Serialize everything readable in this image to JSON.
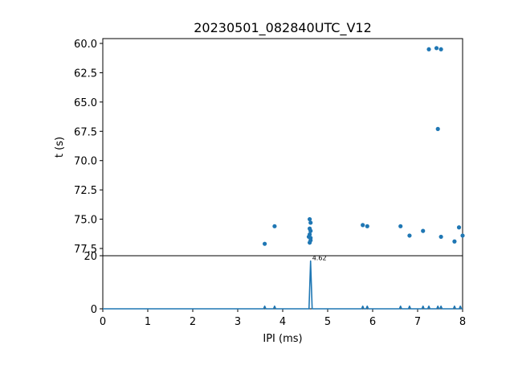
{
  "chart_data": [
    {
      "type": "scatter",
      "title": "20230501_082840UTC_V12",
      "xlabel": "",
      "ylabel": "t (s)",
      "xlim": [
        0,
        8
      ],
      "ylim": [
        77.5,
        60.0
      ],
      "y_inverted": true,
      "yticks": [
        "60.0",
        "62.5",
        "65.0",
        "67.5",
        "70.0",
        "72.5",
        "75.0",
        "77.5"
      ],
      "color": "#1f77b4",
      "points": [
        {
          "x": 3.6,
          "y": 77.1
        },
        {
          "x": 3.82,
          "y": 75.6
        },
        {
          "x": 4.6,
          "y": 75.0
        },
        {
          "x": 4.62,
          "y": 75.3
        },
        {
          "x": 4.6,
          "y": 75.8
        },
        {
          "x": 4.62,
          "y": 76.0
        },
        {
          "x": 4.6,
          "y": 76.3
        },
        {
          "x": 4.62,
          "y": 76.6
        },
        {
          "x": 4.58,
          "y": 76.5
        },
        {
          "x": 4.62,
          "y": 76.8
        },
        {
          "x": 4.6,
          "y": 77.0
        },
        {
          "x": 5.78,
          "y": 75.5
        },
        {
          "x": 5.88,
          "y": 75.6
        },
        {
          "x": 6.62,
          "y": 75.6
        },
        {
          "x": 6.82,
          "y": 76.4
        },
        {
          "x": 7.12,
          "y": 76.0
        },
        {
          "x": 7.25,
          "y": 60.5
        },
        {
          "x": 7.42,
          "y": 60.4
        },
        {
          "x": 7.52,
          "y": 60.5
        },
        {
          "x": 7.45,
          "y": 67.3
        },
        {
          "x": 7.52,
          "y": 76.5
        },
        {
          "x": 7.82,
          "y": 76.9
        },
        {
          "x": 7.92,
          "y": 75.7
        },
        {
          "x": 8.0,
          "y": 76.4
        }
      ]
    },
    {
      "type": "line",
      "xlabel": "IPI (ms)",
      "ylabel": "",
      "xlim": [
        0,
        8
      ],
      "ylim": [
        0,
        20
      ],
      "xticks": [
        "0",
        "1",
        "2",
        "3",
        "4",
        "5",
        "6",
        "7",
        "8"
      ],
      "yticks": [
        "0",
        "20"
      ],
      "color": "#1f77b4",
      "peaks": [
        {
          "x": 3.6,
          "y": 1
        },
        {
          "x": 3.82,
          "y": 1
        },
        {
          "x": 4.62,
          "y": 18
        },
        {
          "x": 5.78,
          "y": 1
        },
        {
          "x": 5.88,
          "y": 1
        },
        {
          "x": 6.62,
          "y": 1
        },
        {
          "x": 6.82,
          "y": 1
        },
        {
          "x": 7.12,
          "y": 1
        },
        {
          "x": 7.25,
          "y": 1
        },
        {
          "x": 7.45,
          "y": 1
        },
        {
          "x": 7.52,
          "y": 1
        },
        {
          "x": 7.82,
          "y": 1
        },
        {
          "x": 7.95,
          "y": 1
        }
      ],
      "annotation": {
        "text": "4.62",
        "x": 4.62,
        "y": 18
      }
    }
  ]
}
